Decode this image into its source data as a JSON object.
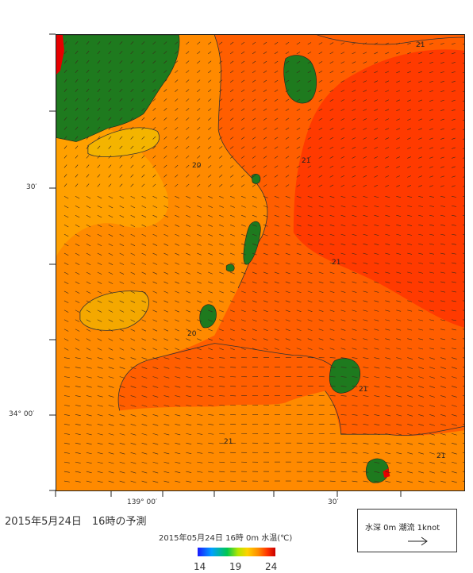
{
  "title": "2015年5月24日　16時の予測",
  "subtitle": "2015年05月24日 16時 0m 水温(℃)",
  "legend": {
    "text": "水深 0m 潮流 1knot",
    "arrow_icon": "right-arrow-icon"
  },
  "colorbar": {
    "min_label": "14",
    "mid_label": "19",
    "max_label": "24",
    "colors": [
      "#1a1aff",
      "#00a0ff",
      "#00c850",
      "#b4e600",
      "#ffd200",
      "#ff8c00",
      "#ff3000",
      "#c80000"
    ]
  },
  "axes": {
    "lat_30": "30′",
    "lat_34_00": "34° 00′",
    "lon_139_00": "139° 00′",
    "lon_30": "30′"
  },
  "contours": {
    "c20a": "20",
    "c20b": "20",
    "c21a": "21",
    "c21b": "21",
    "c21c": "21",
    "c21d": "21",
    "c21e": "21",
    "c21f": "21"
  },
  "colors": {
    "land": "#1e7a1e",
    "sea_warm": "#ff4a00",
    "sea_mid": "#ff6a00",
    "sea_base": "#ff8a00",
    "sea_cool": "#ffa500",
    "sea_coolest": "#f2b400"
  }
}
